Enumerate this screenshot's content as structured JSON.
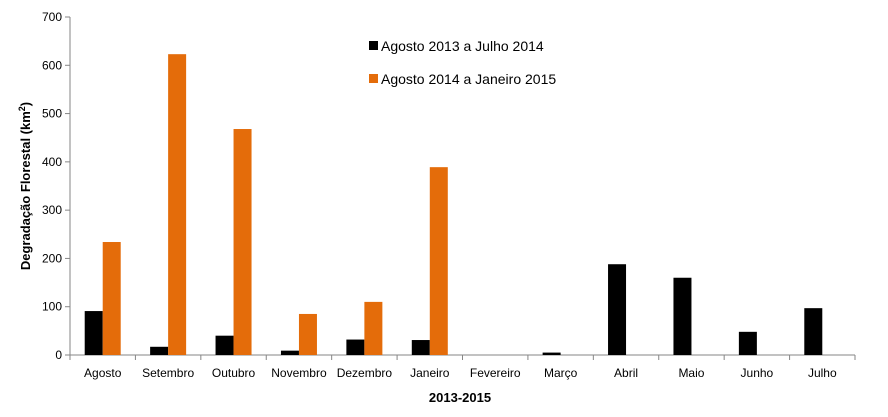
{
  "chart_data": {
    "type": "bar",
    "xlabel": "2013-2015",
    "ylabel": "Degradação Florestal (km²)",
    "ylim": [
      0,
      700
    ],
    "yticks": [
      0,
      100,
      200,
      300,
      400,
      500,
      600,
      700
    ],
    "categories": [
      "Agosto",
      "Setembro",
      "Outubro",
      "Novembro",
      "Dezembro",
      "Janeiro",
      "Fevereiro",
      "Março",
      "Abril",
      "Maio",
      "Junho",
      "Julho"
    ],
    "series": [
      {
        "name": "Agosto 2013 a Julho 2014",
        "color": "#000000",
        "values": [
          91,
          17,
          40,
          9,
          32,
          31,
          0,
          5,
          188,
          160,
          48,
          97
        ]
      },
      {
        "name": "Agosto 2014 a Janeiro 2015",
        "color": "#E46C0A",
        "values": [
          234,
          623,
          468,
          85,
          110,
          389,
          null,
          null,
          null,
          null,
          null,
          null
        ]
      }
    ],
    "grid": false,
    "legend_position": "top-center"
  }
}
